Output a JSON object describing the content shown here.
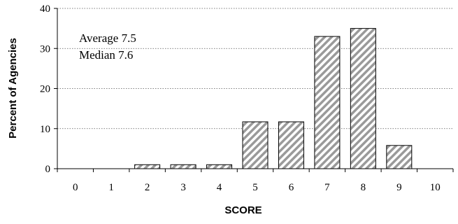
{
  "chart_data": {
    "type": "bar",
    "title": "",
    "xlabel": "SCORE",
    "ylabel": "Percent of Agencies",
    "categories": [
      "0",
      "1",
      "2",
      "3",
      "4",
      "5",
      "6",
      "7",
      "8",
      "9",
      "10"
    ],
    "values": [
      0,
      0,
      1,
      1,
      1,
      11.7,
      11.7,
      33,
      35,
      5.8,
      0
    ],
    "ylim": [
      0,
      40
    ],
    "yticks": [
      "0",
      "10",
      "20",
      "30",
      "40"
    ],
    "grid": true,
    "annotations": [
      "Average 7.5",
      "Median 7.6"
    ],
    "colors": {
      "bar_fill": "#ffffff",
      "bar_hatch": "#9a9a9a",
      "bar_edge": "#000000",
      "grid": "#555555"
    }
  }
}
